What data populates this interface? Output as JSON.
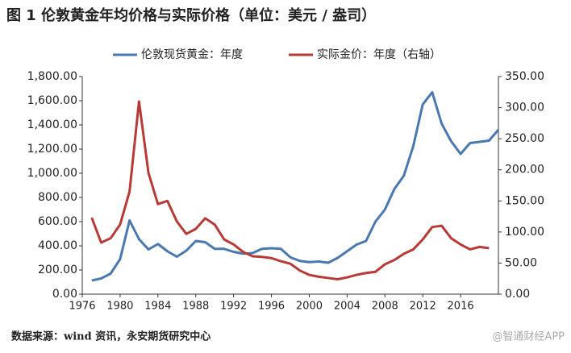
{
  "chart_data": {
    "type": "line",
    "title": "图 1 伦敦黄金年均价格与实际价格（单位：美元 / 盎司）",
    "source": "数据来源：wind 资讯，永安期货研究中心",
    "watermark": "@智通财经APP",
    "x": [
      1977,
      1978,
      1979,
      1980,
      1981,
      1982,
      1983,
      1984,
      1985,
      1986,
      1987,
      1988,
      1989,
      1990,
      1991,
      1992,
      1993,
      1994,
      1995,
      1996,
      1997,
      1998,
      1999,
      2000,
      2001,
      2002,
      2003,
      2004,
      2005,
      2006,
      2007,
      2008,
      2009,
      2010,
      2011,
      2012,
      2013,
      2014,
      2015,
      2016,
      2017,
      2018,
      2019,
      2020
    ],
    "series": [
      {
        "name": "伦敦现货黄金：年度",
        "color": "#4a78b0",
        "axis": "y",
        "values": [
          113,
          130,
          170,
          290,
          610,
          455,
          370,
          415,
          355,
          310,
          360,
          440,
          430,
          375,
          375,
          350,
          335,
          340,
          375,
          380,
          375,
          305,
          275,
          265,
          270,
          260,
          300,
          355,
          410,
          440,
          600,
          700,
          870,
          980,
          1225,
          1570,
          1670,
          1410,
          1265,
          1160,
          1250,
          1260,
          1270,
          1360
        ]
      },
      {
        "name": "实际金价：年度（右轴）",
        "color": "#b83a36",
        "axis": "y2",
        "values": [
          123,
          83,
          90,
          112,
          165,
          310,
          195,
          145,
          150,
          117,
          97,
          105,
          122,
          112,
          88,
          80,
          68,
          61,
          60,
          58,
          53,
          49,
          38,
          31,
          28,
          26,
          24,
          27,
          31,
          34,
          36,
          48,
          55,
          65,
          72,
          88,
          108,
          110,
          90,
          80,
          72,
          76,
          74,
          null
        ]
      }
    ],
    "xlim": [
      1976,
      2020
    ],
    "xticks": [
      1976,
      1980,
      1984,
      1988,
      1992,
      1996,
      2000,
      2004,
      2008,
      2012,
      2016
    ],
    "ylim": [
      0,
      1800
    ],
    "yticks": [
      {
        "value": 0,
        "label": "0.00"
      },
      {
        "value": 200,
        "label": "200.00"
      },
      {
        "value": 400,
        "label": "400.00"
      },
      {
        "value": 600,
        "label": "600.00"
      },
      {
        "value": 800,
        "label": "800.00"
      },
      {
        "value": 1000,
        "label": "1,000.00"
      },
      {
        "value": 1200,
        "label": "1,200.00"
      },
      {
        "value": 1400,
        "label": "1,400.00"
      },
      {
        "value": 1600,
        "label": "1,600.00"
      },
      {
        "value": 1800,
        "label": "1,800.00"
      }
    ],
    "y2lim": [
      0,
      350
    ],
    "y2ticks": [
      {
        "value": 0,
        "label": "0.00"
      },
      {
        "value": 50,
        "label": "50.00"
      },
      {
        "value": 100,
        "label": "100.00"
      },
      {
        "value": 150,
        "label": "150.00"
      },
      {
        "value": 200,
        "label": "200.00"
      },
      {
        "value": 250,
        "label": "250.00"
      },
      {
        "value": 300,
        "label": "300.00"
      },
      {
        "value": 350,
        "label": "350.00"
      }
    ],
    "legend": "top"
  }
}
